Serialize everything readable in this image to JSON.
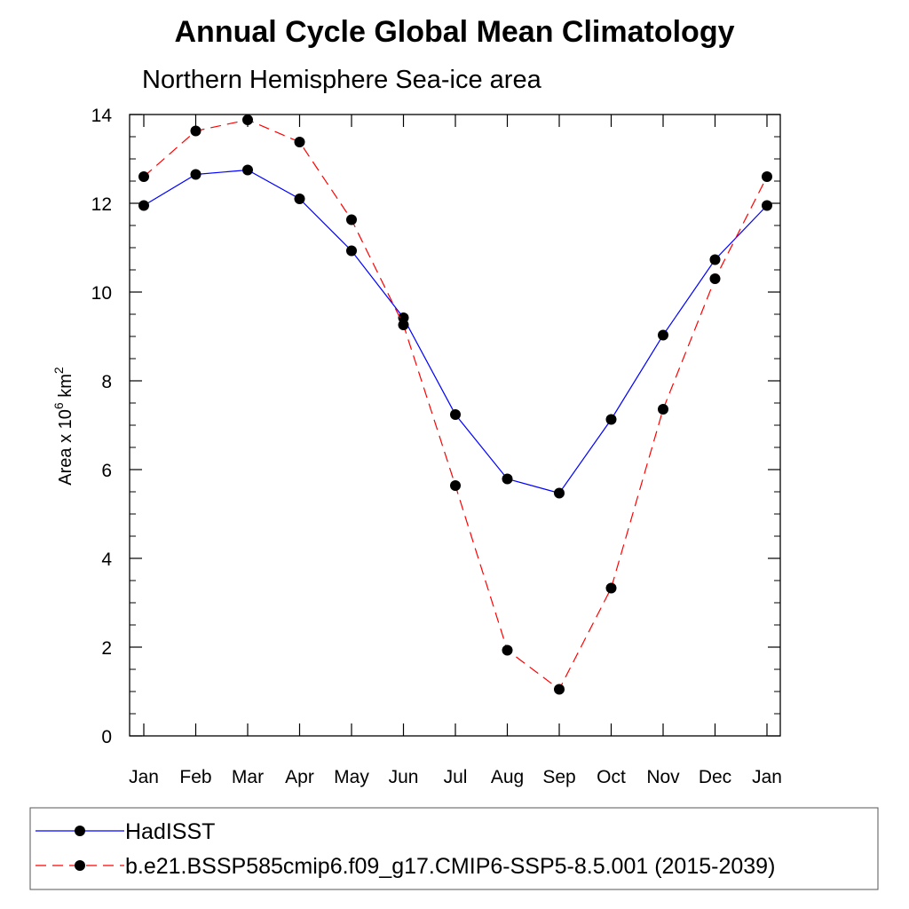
{
  "chart_data": {
    "type": "line",
    "title": "Annual Cycle Global Mean Climatology",
    "subtitle": "Northern Hemisphere Sea-ice area",
    "ylabel": {
      "prefix": "Area x 10",
      "exponent1": "6",
      "unit": " km",
      "exponent2": "2"
    },
    "xlabel": "",
    "categories": [
      "Jan",
      "Feb",
      "Mar",
      "Apr",
      "May",
      "Jun",
      "Jul",
      "Aug",
      "Sep",
      "Oct",
      "Nov",
      "Dec",
      "Jan"
    ],
    "ylim": [
      0,
      14
    ],
    "yticks": [
      "0",
      "2",
      "4",
      "6",
      "8",
      "10",
      "12",
      "14"
    ],
    "grid": false,
    "legend_position": "bottom",
    "series": [
      {
        "name": "HadISST",
        "color": "#0000ff",
        "style": "solid",
        "values": [
          11.95,
          12.65,
          12.75,
          12.1,
          10.93,
          9.42,
          7.24,
          5.79,
          5.47,
          7.13,
          9.03,
          10.73,
          11.95
        ]
      },
      {
        "name": "b.e21.BSSP585cmip6.f09_g17.CMIP6-SSP5-8.5.001 (2015-2039)",
        "color": "#ff0000",
        "style": "dashed",
        "values": [
          12.6,
          13.63,
          13.88,
          13.38,
          11.63,
          9.26,
          5.64,
          1.93,
          1.05,
          3.33,
          7.36,
          10.3,
          12.6
        ]
      }
    ]
  }
}
